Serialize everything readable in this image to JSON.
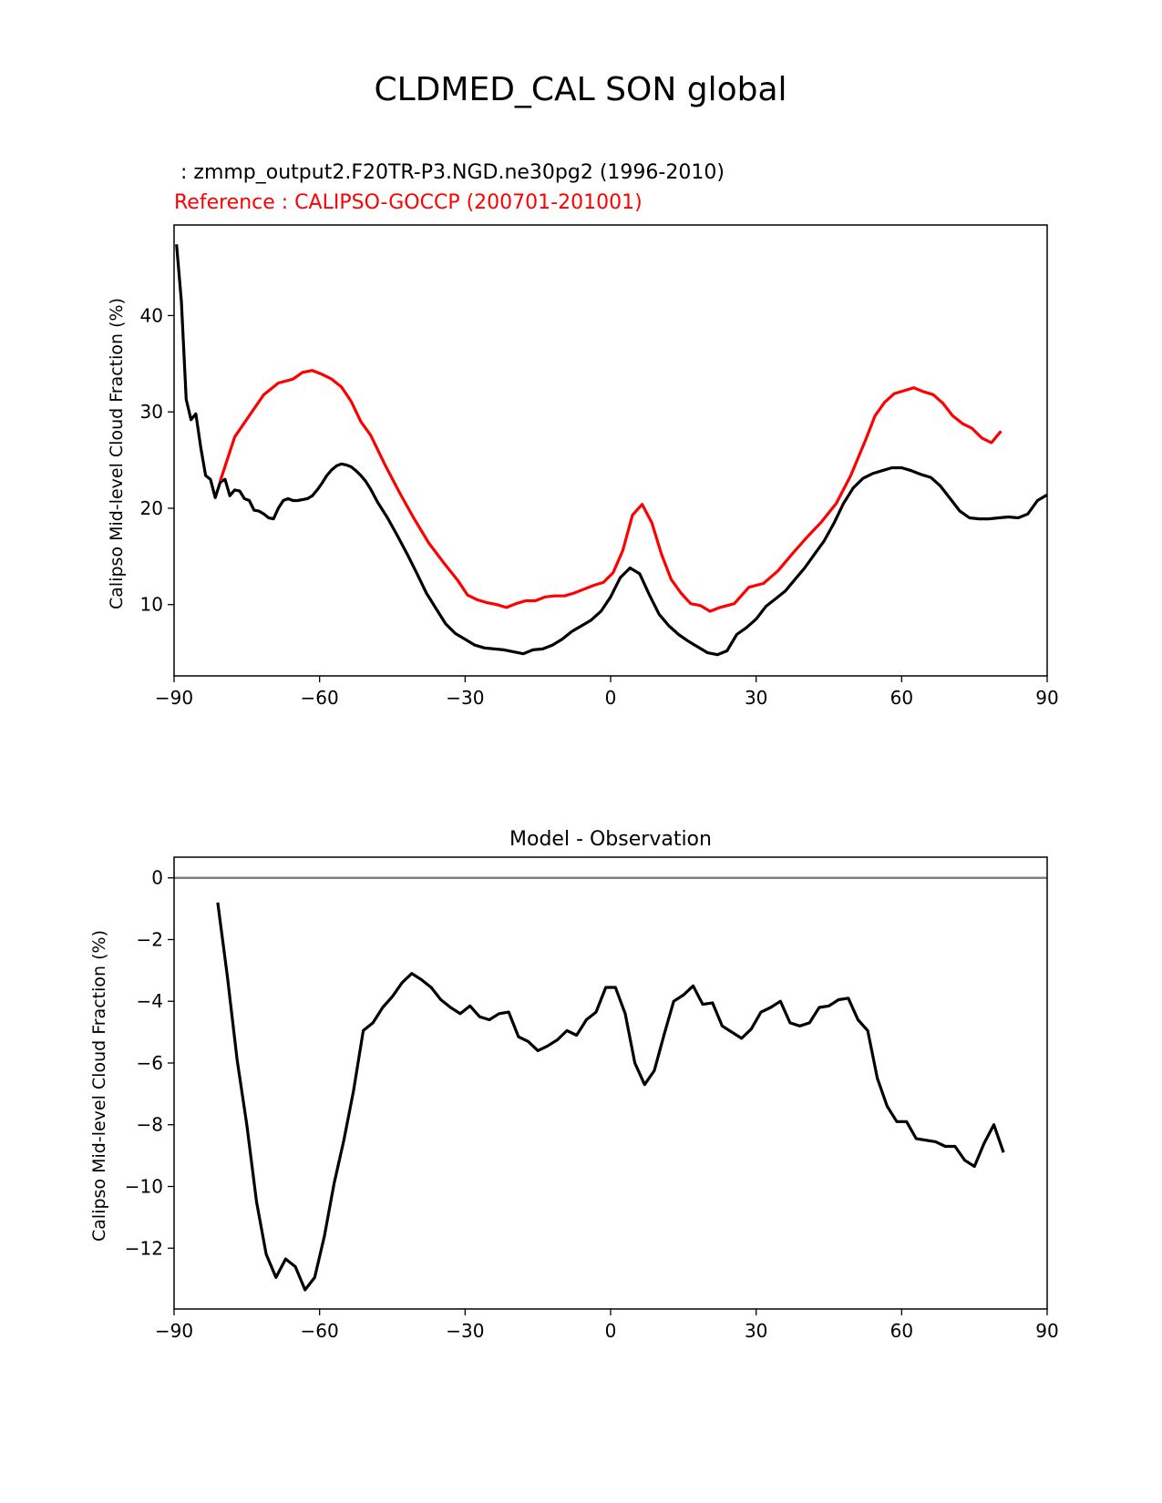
{
  "figure": {
    "title": "CLDMED_CAL SON global",
    "colors": {
      "test": "#000000",
      "reference": "#ff0000",
      "zero_line": "#808080",
      "axes": "#000000"
    }
  },
  "chart_data": [
    {
      "type": "line",
      "title": "",
      "test_label": " : zmmp_output2.F20TR-P3.NGD.ne30pg2 (1996-2010)",
      "reference_label": "Reference : CALIPSO-GOCCP (200701-201001)",
      "xlabel": "",
      "ylabel": "Calipso Mid-level Cloud Fraction (%)",
      "xlim": [
        -90,
        90
      ],
      "ylim": [
        2.6,
        49.4
      ],
      "xticks": [
        -90,
        -60,
        -30,
        0,
        30,
        60,
        90
      ],
      "xtick_labels": [
        "−90",
        "−60",
        "−30",
        "0",
        "30",
        "60",
        "90"
      ],
      "yticks": [
        10,
        20,
        30,
        40
      ],
      "ytick_labels": [
        "10",
        "20",
        "30",
        "40"
      ],
      "grid": false,
      "series": [
        {
          "name": "test",
          "color": "#000000",
          "x": [
            -89.5,
            -88.5,
            -87.5,
            -86.5,
            -85.5,
            -84.5,
            -83.5,
            -82.5,
            -81.5,
            -80.5,
            -79.5,
            -78.5,
            -77.5,
            -76.5,
            -75.5,
            -74.5,
            -73.5,
            -72.5,
            -71.5,
            -70.5,
            -69.5,
            -68.5,
            -67.5,
            -66.5,
            -65.5,
            -64.5,
            -63.5,
            -62.5,
            -61.5,
            -60.5,
            -59.5,
            -58.5,
            -57.5,
            -56.5,
            -55.5,
            -54.5,
            -53.5,
            -52.5,
            -51.5,
            -50.5,
            -49.5,
            -48,
            -46,
            -44,
            -42,
            -40,
            -38,
            -36,
            -34,
            -32,
            -30,
            -28,
            -26,
            -24,
            -22,
            -20,
            -18,
            -16,
            -14,
            -12,
            -10,
            -8,
            -6,
            -4,
            -2,
            0,
            2,
            4,
            6,
            8,
            10,
            12,
            14,
            16,
            18,
            20,
            22,
            24,
            26,
            28,
            30,
            32,
            34,
            36,
            38,
            40,
            42,
            44,
            46,
            48,
            50,
            52,
            54,
            56,
            58,
            60,
            62,
            64,
            66,
            68,
            70,
            72,
            74,
            76,
            78,
            80,
            82,
            84,
            86,
            88,
            90
          ],
          "y": [
            47.4,
            41.5,
            31.3,
            29.2,
            29.8,
            26.3,
            23.4,
            23.0,
            21.1,
            22.7,
            23.0,
            21.3,
            21.9,
            21.8,
            21.0,
            20.8,
            19.8,
            19.7,
            19.4,
            19.0,
            18.9,
            20.0,
            20.8,
            21.0,
            20.8,
            20.8,
            20.9,
            21.0,
            21.3,
            21.9,
            22.6,
            23.4,
            24.0,
            24.4,
            24.6,
            24.5,
            24.3,
            23.9,
            23.4,
            22.8,
            22.0,
            20.6,
            19.0,
            17.2,
            15.3,
            13.3,
            11.2,
            9.6,
            8.0,
            7.0,
            6.4,
            5.8,
            5.5,
            5.4,
            5.3,
            5.1,
            4.9,
            5.3,
            5.4,
            5.8,
            6.4,
            7.2,
            7.8,
            8.4,
            9.3,
            10.8,
            12.8,
            13.8,
            13.2,
            11.0,
            9.0,
            7.8,
            6.9,
            6.2,
            5.6,
            5.0,
            4.8,
            5.2,
            6.9,
            7.6,
            8.5,
            9.8,
            10.6,
            11.4,
            12.6,
            13.8,
            15.2,
            16.6,
            18.4,
            20.5,
            22.1,
            23.1,
            23.6,
            23.9,
            24.2,
            24.2,
            23.9,
            23.5,
            23.2,
            22.3,
            21.0,
            19.7,
            19.0,
            18.9,
            18.9,
            19.0,
            19.1,
            19.0,
            19.4,
            20.8,
            21.4
          ]
        },
        {
          "name": "reference",
          "color": "#ff0000",
          "x": [
            -80.5,
            -77.5,
            -74.5,
            -71.5,
            -68.5,
            -65.5,
            -63.5,
            -61.5,
            -59.5,
            -57.5,
            -55.5,
            -53.5,
            -51.5,
            -49.5,
            -46.5,
            -43.5,
            -40.5,
            -37.5,
            -34.5,
            -31.5,
            -29.5,
            -27.5,
            -25.5,
            -23.5,
            -21.5,
            -19.5,
            -17.5,
            -15.5,
            -13.5,
            -11.5,
            -9.5,
            -7.5,
            -5.5,
            -3.5,
            -1.5,
            0.5,
            2.5,
            4.5,
            6.5,
            8.5,
            10.5,
            12.5,
            14.5,
            16.5,
            18.5,
            20.5,
            22.5,
            25.5,
            28.5,
            31.5,
            34.5,
            37.5,
            40.5,
            43.5,
            46.5,
            49.5,
            52.5,
            54.5,
            56.5,
            58.5,
            60.5,
            62.5,
            64.5,
            66.5,
            68.5,
            70.5,
            72.5,
            74.5,
            76.5,
            78.5,
            80.5
          ],
          "y": [
            22.8,
            27.4,
            29.6,
            31.8,
            33.0,
            33.4,
            34.1,
            34.3,
            33.9,
            33.4,
            32.6,
            31.1,
            29.0,
            27.6,
            24.5,
            21.6,
            18.9,
            16.4,
            14.4,
            12.5,
            11.0,
            10.5,
            10.2,
            10.0,
            9.7,
            10.1,
            10.4,
            10.4,
            10.8,
            10.9,
            10.9,
            11.2,
            11.6,
            12.0,
            12.3,
            13.3,
            15.6,
            19.3,
            20.4,
            18.5,
            15.2,
            12.6,
            11.2,
            10.1,
            9.9,
            9.3,
            9.7,
            10.1,
            11.8,
            12.2,
            13.5,
            15.3,
            17.0,
            18.6,
            20.5,
            23.4,
            27.0,
            29.6,
            31.0,
            31.9,
            32.2,
            32.5,
            32.1,
            31.8,
            30.9,
            29.6,
            28.8,
            28.3,
            27.3,
            26.8,
            28.0
          ]
        }
      ]
    },
    {
      "type": "line",
      "title": "Model - Observation",
      "xlabel": "",
      "ylabel": "Calipso Mid-level Cloud Fraction (%)",
      "xlim": [
        -90,
        90
      ],
      "ylim": [
        -13.97,
        0.67
      ],
      "xticks": [
        -90,
        -60,
        -30,
        0,
        30,
        60,
        90
      ],
      "xtick_labels": [
        "−90",
        "−60",
        "−30",
        "0",
        "30",
        "60",
        "90"
      ],
      "yticks": [
        0,
        -2,
        -4,
        -6,
        -8,
        -10,
        -12
      ],
      "ytick_labels": [
        "0",
        "−2",
        "−4",
        "−6",
        "−8",
        "−10",
        "−12"
      ],
      "grid": false,
      "zero_line": true,
      "series": [
        {
          "name": "difference",
          "color": "#000000",
          "x": [
            -81,
            -79,
            -77,
            -75,
            -73,
            -71,
            -69,
            -67,
            -65,
            -63,
            -61,
            -59,
            -57,
            -55,
            -53,
            -51,
            -49,
            -47,
            -45,
            -43,
            -41,
            -39,
            -37,
            -35,
            -33,
            -31,
            -29,
            -27,
            -25,
            -23,
            -21,
            -19,
            -17,
            -15,
            -13,
            -11,
            -9,
            -7,
            -5,
            -3,
            -1,
            1,
            3,
            5,
            7,
            9,
            11,
            13,
            15,
            17,
            19,
            21,
            23,
            25,
            27,
            29,
            31,
            33,
            35,
            37,
            39,
            41,
            43,
            45,
            47,
            49,
            51,
            53,
            55,
            57,
            59,
            61,
            63,
            65,
            67,
            69,
            71,
            73,
            75,
            77,
            79,
            81
          ],
          "y": [
            -0.8,
            -3.2,
            -5.9,
            -8.0,
            -10.5,
            -12.2,
            -12.95,
            -12.35,
            -12.6,
            -13.35,
            -12.95,
            -11.6,
            -9.9,
            -8.5,
            -6.9,
            -4.95,
            -4.7,
            -4.2,
            -3.85,
            -3.4,
            -3.1,
            -3.3,
            -3.55,
            -3.95,
            -4.2,
            -4.4,
            -4.15,
            -4.5,
            -4.6,
            -4.4,
            -4.35,
            -5.15,
            -5.3,
            -5.6,
            -5.45,
            -5.25,
            -4.95,
            -5.1,
            -4.6,
            -4.35,
            -3.55,
            -3.55,
            -4.4,
            -6.0,
            -6.7,
            -6.25,
            -5.1,
            -4.0,
            -3.8,
            -3.5,
            -4.1,
            -4.05,
            -4.8,
            -5.0,
            -5.2,
            -4.9,
            -4.35,
            -4.2,
            -4.0,
            -4.7,
            -4.8,
            -4.7,
            -4.2,
            -4.15,
            -3.95,
            -3.9,
            -4.6,
            -4.95,
            -6.5,
            -7.4,
            -7.9,
            -7.9,
            -8.45,
            -8.5,
            -8.55,
            -8.7,
            -8.7,
            -9.15,
            -9.35,
            -8.6,
            -8.0,
            -8.9
          ]
        }
      ]
    }
  ]
}
